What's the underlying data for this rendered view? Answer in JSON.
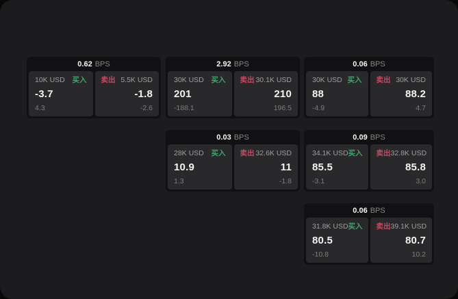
{
  "units": {
    "bps": "BPS"
  },
  "labels": {
    "buy": "买入",
    "sell": "卖出"
  },
  "colors": {
    "buy": "#3fa36c",
    "sell": "#c44a63"
  },
  "cards": [
    {
      "bps": "0.62",
      "buy": {
        "size": "10K USD",
        "value": "-3.7",
        "sub": "4.3"
      },
      "sell": {
        "size": "5.5K USD",
        "value": "-1.8",
        "sub": "-2.6"
      }
    },
    {
      "bps": "2.92",
      "buy": {
        "size": "30K USD",
        "value": "201",
        "sub": "-188.1"
      },
      "sell": {
        "size": "30.1K USD",
        "value": "210",
        "sub": "196.5"
      }
    },
    {
      "bps": "0.06",
      "buy": {
        "size": "30K USD",
        "value": "88",
        "sub": "-4.9"
      },
      "sell": {
        "size": "30K USD",
        "value": "88.2",
        "sub": "4.7"
      }
    },
    {
      "bps": "0.03",
      "buy": {
        "size": "28K USD",
        "value": "10.9",
        "sub": "1.3"
      },
      "sell": {
        "size": "32.6K USD",
        "value": "11",
        "sub": "-1.8"
      }
    },
    {
      "bps": "0.09",
      "buy": {
        "size": "34.1K USD",
        "value": "85.5",
        "sub": "-3.1"
      },
      "sell": {
        "size": "32.8K USD",
        "value": "85.8",
        "sub": "3.0"
      }
    },
    {
      "bps": "0.06",
      "buy": {
        "size": "31.8K USD",
        "value": "80.5",
        "sub": "-10.8"
      },
      "sell": {
        "size": "39.1K USD",
        "value": "80.7",
        "sub": "10.2"
      }
    }
  ]
}
